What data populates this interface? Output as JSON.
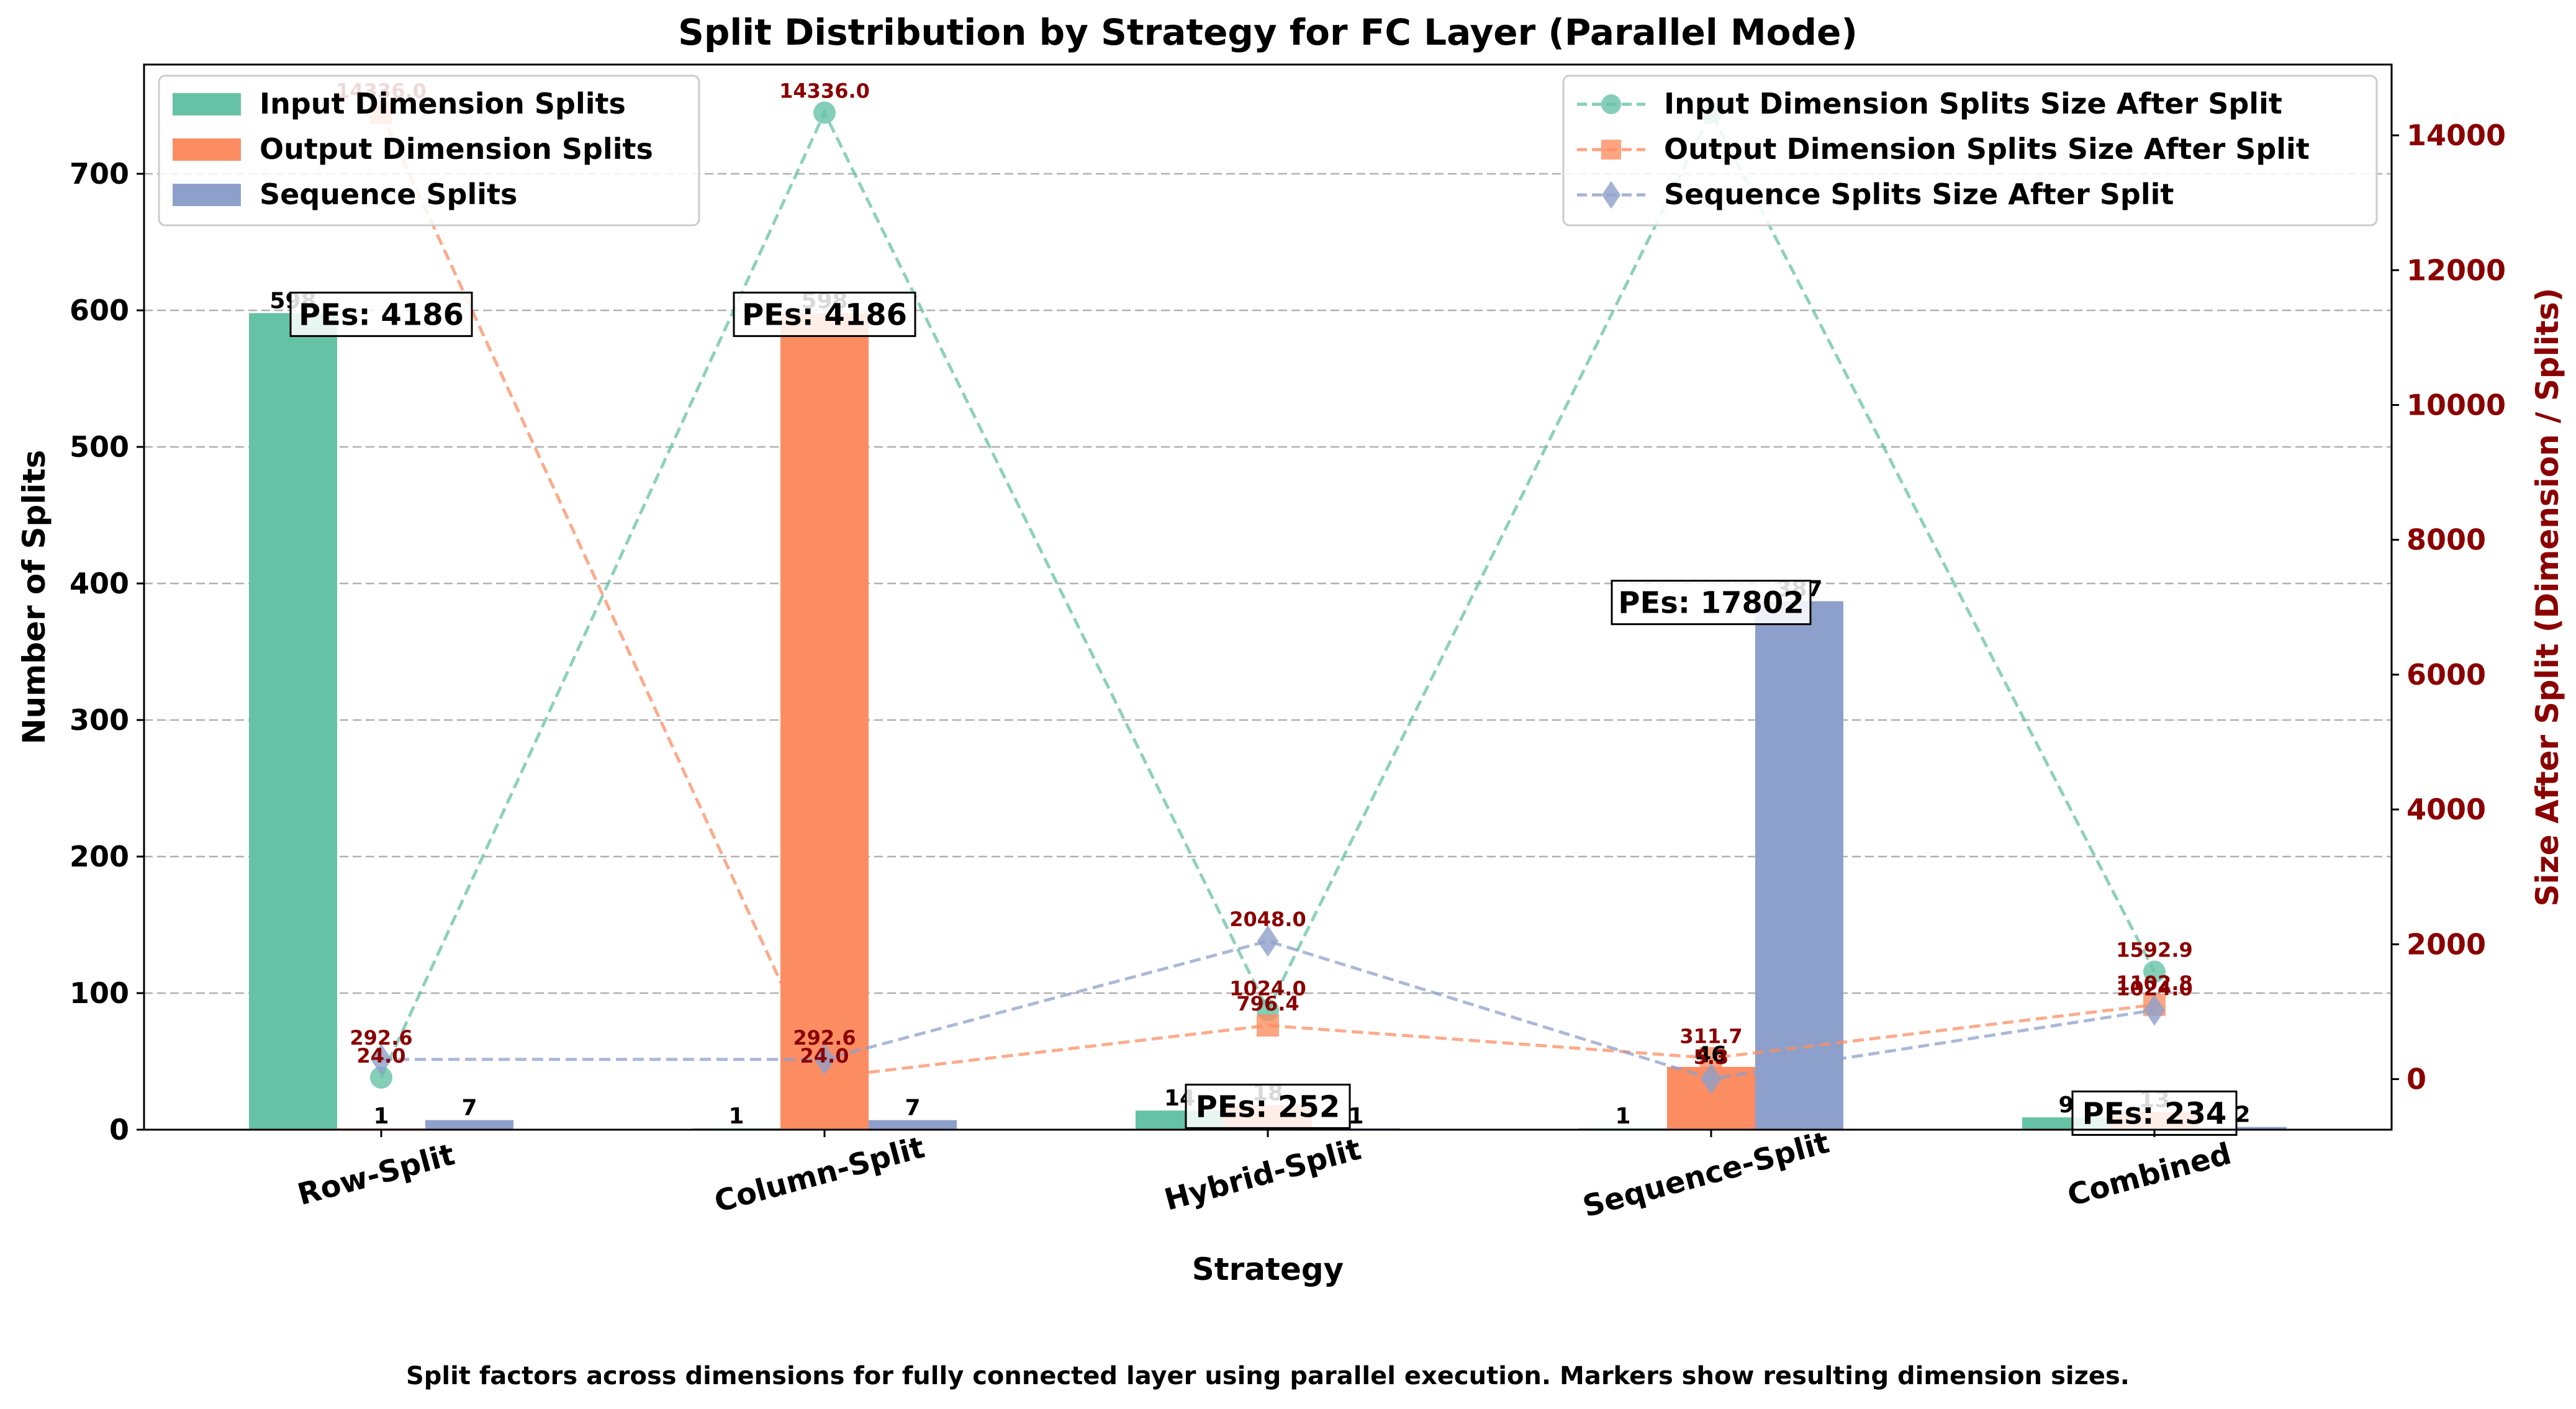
{
  "chart_data": {
    "type": "bar",
    "title": "Split Distribution by Strategy for FC Layer (Parallel Mode)",
    "xlabel": "Strategy",
    "ylabel": "Number of Splits",
    "y2label": "Size After Split (Dimension / Splits)",
    "caption": "Split factors across dimensions for fully connected layer using parallel execution. Markers show resulting dimension sizes.",
    "categories": [
      "Row-Split",
      "Column-Split",
      "Hybrid-Split",
      "Sequence-Split",
      "Combined"
    ],
    "ylim": [
      0,
      780
    ],
    "y2lim": [
      -750,
      15050
    ],
    "yticks": [
      0,
      100,
      200,
      300,
      400,
      500,
      600,
      700
    ],
    "y2ticks": [
      0,
      2000,
      4000,
      6000,
      8000,
      10000,
      12000,
      14000
    ],
    "grid": true,
    "legend_bars_position": "upper-left",
    "legend_lines_position": "upper-right",
    "series": [
      {
        "name": "Input Dimension Splits",
        "color": "#66c2a5",
        "values": [
          598,
          1,
          14,
          1,
          9
        ],
        "labels": [
          "598",
          "1",
          "14",
          "1",
          "9"
        ]
      },
      {
        "name": "Output Dimension Splits",
        "color": "#fc8d62",
        "values": [
          1,
          598,
          18,
          46,
          13
        ],
        "labels": [
          "1",
          "598",
          "18",
          "46",
          "13"
        ]
      },
      {
        "name": "Sequence Splits",
        "color": "#8da0cb",
        "values": [
          7,
          7,
          1,
          387,
          2
        ],
        "labels": [
          "7",
          "7",
          "1",
          "387",
          "2"
        ]
      }
    ],
    "line_series": [
      {
        "name": "Input Dimension Splits Size After Split",
        "color": "#66c2a5",
        "marker": "circle",
        "values": [
          24.0,
          14336.0,
          1024.0,
          14336.0,
          1592.9
        ],
        "labels": [
          "24.0",
          "14336.0",
          "1024.0",
          "",
          "1592.9"
        ]
      },
      {
        "name": "Output Dimension Splits Size After Split",
        "color": "#fc8d62",
        "marker": "square",
        "values": [
          14336.0,
          24.0,
          796.4,
          311.7,
          1102.8
        ],
        "labels": [
          "14336.0",
          "24.0",
          "796.4",
          "311.7",
          "1102.8"
        ]
      },
      {
        "name": "Sequence Splits Size After Split",
        "color": "#8da0cb",
        "marker": "diamond",
        "values": [
          292.6,
          292.6,
          2048.0,
          5.3,
          1024.0
        ],
        "labels": [
          "292.6",
          "292.6",
          "2048.0",
          "5.3",
          "1024.0"
        ]
      }
    ],
    "pe_annotations": [
      "PEs: 4186",
      "PEs: 4186",
      "PEs: 252",
      "PEs: 17802",
      "PEs: 234"
    ],
    "value_label_color": "#8b0000",
    "axis2_color": "#8b0000"
  }
}
